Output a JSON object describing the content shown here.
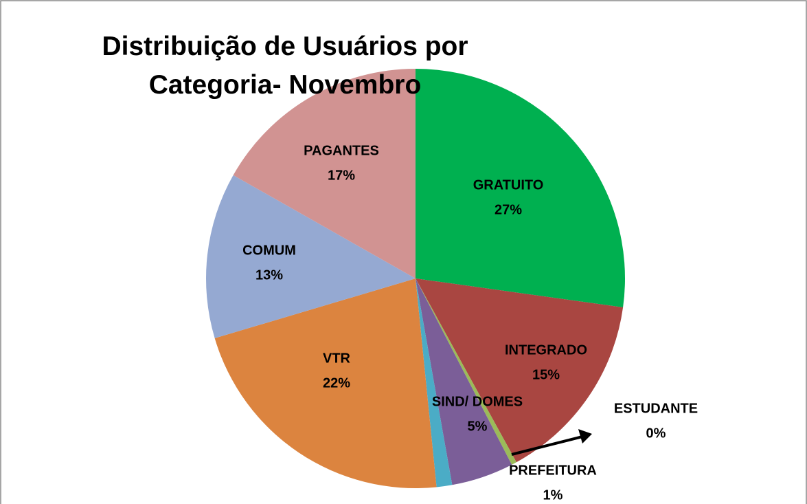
{
  "chart_data": {
    "type": "pie",
    "title": "Distribuição de Usuários por Categoria- Novembro",
    "categories": [
      "GRATUITO",
      "INTEGRADO",
      "ESTUDANTE",
      "SIND/ DOMES",
      "PREFEITURA",
      "VTR",
      "COMUM",
      "PAGANTES"
    ],
    "values": [
      27.2,
      14.8,
      0.4,
      4.8,
      1.2,
      22,
      12.8,
      16.8
    ],
    "value_labels": [
      "27%",
      "15%",
      "0%",
      "5%",
      "1%",
      "22%",
      "13%",
      "17%"
    ],
    "colors": [
      "#00b050",
      "#a94641",
      "#9bbb59",
      "#7b5e98",
      "#4bacc6",
      "#dc843f",
      "#95a9d2",
      "#d19392"
    ]
  }
}
